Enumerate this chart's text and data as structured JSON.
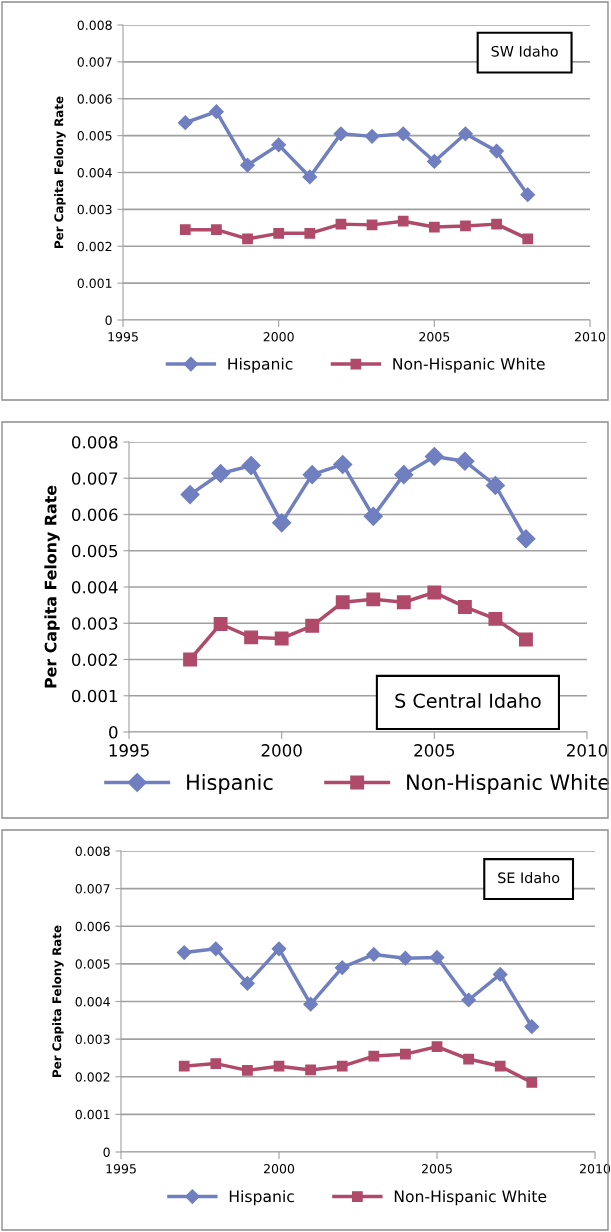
{
  "chart_data": [
    {
      "type": "line",
      "ylabel": "Per Capita Felony Rate",
      "annotations": [
        "SW Idaho"
      ],
      "x": [
        1997,
        1998,
        1999,
        2000,
        2001,
        2002,
        2003,
        2004,
        2005,
        2006,
        2007,
        2008
      ],
      "series": [
        {
          "name": "Hispanic",
          "color": "#6f7fbf",
          "marker": "diamond",
          "values": [
            0.00535,
            0.00565,
            0.0042,
            0.00475,
            0.00388,
            0.00505,
            0.00498,
            0.00505,
            0.0043,
            0.00505,
            0.00458,
            0.0034
          ]
        },
        {
          "name": "Non-Hispanic White",
          "color": "#b04a6a",
          "marker": "square",
          "values": [
            0.00245,
            0.00245,
            0.0022,
            0.00235,
            0.00235,
            0.0026,
            0.00258,
            0.00268,
            0.00252,
            0.00255,
            0.0026,
            0.0022
          ]
        }
      ],
      "xlim": [
        1995,
        2010
      ],
      "xticks": [
        1995,
        2000,
        2005,
        2010
      ],
      "ylim": [
        0,
        0.008
      ],
      "yticks": [
        0,
        0.001,
        0.002,
        0.003,
        0.004,
        0.005,
        0.006,
        0.007,
        0.008
      ],
      "grid": "y",
      "legend": "bottom"
    },
    {
      "type": "line",
      "ylabel": "Per Capita Felony Rate",
      "annotations": [
        "S Central Idaho"
      ],
      "x": [
        1997,
        1998,
        1999,
        2000,
        2001,
        2002,
        2003,
        2004,
        2005,
        2006,
        2007,
        2008
      ],
      "series": [
        {
          "name": "Hispanic",
          "color": "#6f7fbf",
          "marker": "diamond",
          "values": [
            0.00655,
            0.00713,
            0.00735,
            0.00577,
            0.0071,
            0.00738,
            0.00595,
            0.0071,
            0.0076,
            0.00747,
            0.0068,
            0.00533
          ]
        },
        {
          "name": "Non-Hispanic White",
          "color": "#b04a6a",
          "marker": "square",
          "values": [
            0.002,
            0.00298,
            0.00261,
            0.00258,
            0.00293,
            0.00358,
            0.00366,
            0.00358,
            0.00385,
            0.00345,
            0.00312,
            0.00255
          ]
        }
      ],
      "xlim": [
        1995,
        2010
      ],
      "xticks": [
        1995,
        2000,
        2005,
        2010
      ],
      "ylim": [
        0,
        0.008
      ],
      "yticks": [
        0,
        0.001,
        0.002,
        0.003,
        0.004,
        0.005,
        0.006,
        0.007,
        0.008
      ],
      "grid": "y",
      "legend": "bottom"
    },
    {
      "type": "line",
      "ylabel": "Per Capita Felony Rate",
      "annotations": [
        "SE Idaho"
      ],
      "x": [
        1997,
        1998,
        1999,
        2000,
        2001,
        2002,
        2003,
        2004,
        2005,
        2006,
        2007,
        2008
      ],
      "series": [
        {
          "name": "Hispanic",
          "color": "#6f7fbf",
          "marker": "diamond",
          "values": [
            0.0053,
            0.0054,
            0.00448,
            0.0054,
            0.00393,
            0.0049,
            0.00525,
            0.00515,
            0.00517,
            0.00404,
            0.00472,
            0.00333
          ]
        },
        {
          "name": "Non-Hispanic White",
          "color": "#b04a6a",
          "marker": "square",
          "values": [
            0.00228,
            0.00235,
            0.00217,
            0.00228,
            0.00218,
            0.00228,
            0.00255,
            0.0026,
            0.0028,
            0.00247,
            0.00228,
            0.00185
          ]
        }
      ],
      "xlim": [
        1995,
        2010
      ],
      "xticks": [
        1995,
        2000,
        2005,
        2010
      ],
      "ylim": [
        0,
        0.008
      ],
      "yticks": [
        0,
        0.001,
        0.002,
        0.003,
        0.004,
        0.005,
        0.006,
        0.007,
        0.008
      ],
      "grid": "y",
      "legend": "bottom"
    }
  ]
}
